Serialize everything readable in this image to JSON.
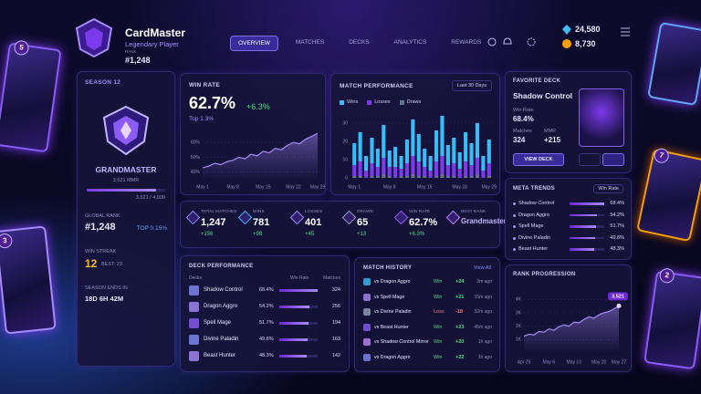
{
  "header": {
    "brand": "CardMaster",
    "subtitle": "Legendary Player",
    "rank_label": "RANK",
    "rank": "#1,248",
    "nav": [
      "OVERVIEW",
      "MATCHES",
      "DECKS",
      "ANALYTICS",
      "REWARDS"
    ],
    "gems": "24,580",
    "coins": "8,730"
  },
  "side_cards": [
    "5",
    "3",
    "7",
    "2"
  ],
  "profile": {
    "season": "SEASON 12",
    "tier": "GRANDMASTER",
    "mmr": "3,521 MMR",
    "progress": "3,521 / 4,000",
    "global_rank_label": "GLOBAL RANK",
    "global_rank": "#1,248",
    "top": "TOP 0.15%",
    "win_streak_label": "WIN STREAK",
    "win_streak": "12",
    "best": "BEST: 23",
    "season_ends_label": "SEASON ENDS IN",
    "season_ends": "18D 6H 42M"
  },
  "win_rate": {
    "title": "WIN RATE",
    "value": "62.7%",
    "change": "+6.3%",
    "sub": "Top 1.3%",
    "chart": {
      "type": "line",
      "color": "#a78bfa",
      "categories": [
        "May 1",
        null,
        null,
        null,
        null,
        "May 8",
        null,
        null,
        null,
        null,
        "May 15",
        null,
        null,
        null,
        null,
        "May 22",
        null,
        null,
        null,
        "May 29"
      ],
      "values": [
        43,
        44,
        46,
        45,
        47,
        48,
        50,
        49,
        52,
        51,
        54,
        53,
        56,
        55,
        58,
        60,
        59,
        62,
        64,
        66
      ],
      "ylim": [
        35,
        68
      ],
      "yticks": [
        {
          "value": 40,
          "label": "40%"
        },
        {
          "value": 50,
          "label": "50%"
        },
        {
          "value": 60,
          "label": "60%"
        }
      ]
    }
  },
  "match_performance": {
    "title": "MATCH PERFORMANCE",
    "range": "Last 30 Days",
    "chart": {
      "type": "bar",
      "stacked": true,
      "categories": [
        "May 1",
        null,
        null,
        null,
        null,
        null,
        "May 8",
        null,
        null,
        null,
        null,
        null,
        "May 15",
        null,
        null,
        null,
        null,
        null,
        "May 23",
        null,
        null,
        null,
        null,
        "May 29"
      ],
      "series": [
        {
          "name": "Wins",
          "color": "#38bdf8",
          "values": [
            12,
            16,
            8,
            14,
            10,
            18,
            9,
            11,
            7,
            13,
            20,
            15,
            10,
            8,
            17,
            22,
            11,
            14,
            9,
            16,
            12,
            19,
            8,
            13
          ]
        },
        {
          "name": "Losses",
          "color": "#7c3aed",
          "values": [
            6,
            8,
            4,
            7,
            5,
            9,
            5,
            6,
            4,
            7,
            10,
            8,
            5,
            4,
            8,
            10,
            6,
            7,
            5,
            8,
            6,
            9,
            4,
            7
          ]
        },
        {
          "name": "Draws",
          "color": "#64748b",
          "values": [
            1,
            1,
            0,
            1,
            1,
            2,
            1,
            0,
            1,
            1,
            2,
            1,
            1,
            0,
            1,
            2,
            1,
            1,
            0,
            1,
            1,
            2,
            0,
            1
          ]
        }
      ],
      "ylim": [
        0,
        35
      ],
      "yticks": [
        0,
        10,
        20,
        30
      ]
    }
  },
  "favorite_deck": {
    "title": "FAVORITE DECK",
    "name": "Shadow Control",
    "win_rate_label": "Win Rate",
    "win_rate": "68.4%",
    "matches_label": "Matches",
    "matches": "324",
    "mmr_label": "MMR",
    "mmr": "+215",
    "button": "VIEW DECK"
  },
  "stats": [
    {
      "label": "TOTAL MATCHES",
      "value": "1,247",
      "change": "+156"
    },
    {
      "label": "WINS",
      "value": "781",
      "change": "+98"
    },
    {
      "label": "LOSSES",
      "value": "401",
      "change": "+45"
    },
    {
      "label": "DRAWS",
      "value": "65",
      "change": "+13"
    },
    {
      "label": "WIN RATE",
      "value": "62.7%",
      "change": "+6.3%"
    },
    {
      "label": "BEST RANK",
      "value": "Grandmaster"
    }
  ],
  "meta_trends": {
    "title": "META TRENDS",
    "filter": "Win Rate",
    "rows": [
      {
        "name": "Shadow Control",
        "win_rate": 68.4,
        "win_rate_label": "68.4%"
      },
      {
        "name": "Dragon Aggro",
        "win_rate": 54.2,
        "win_rate_label": "54.2%"
      },
      {
        "name": "Spell Mage",
        "win_rate": 51.7,
        "win_rate_label": "51.7%"
      },
      {
        "name": "Divine Paladin",
        "win_rate": 49.8,
        "win_rate_label": "49.8%"
      },
      {
        "name": "Beast Hunter",
        "win_rate": 48.3,
        "win_rate_label": "48.3%"
      }
    ]
  },
  "deck_performance": {
    "title": "DECK PERFORMANCE",
    "headers": [
      "Decks",
      "Win Rate",
      "Matches"
    ],
    "rows": [
      {
        "name": "Shadow Control",
        "win_rate": 68.4,
        "win_rate_label": "68.4%",
        "matches": "324"
      },
      {
        "name": "Dragon Aggro",
        "win_rate": 54.2,
        "win_rate_label": "54.2%",
        "matches": "256"
      },
      {
        "name": "Spell Mage",
        "win_rate": 51.7,
        "win_rate_label": "51.7%",
        "matches": "194"
      },
      {
        "name": "Divine Paladin",
        "win_rate": 49.8,
        "win_rate_label": "49.8%",
        "matches": "163"
      },
      {
        "name": "Beast Hunter",
        "win_rate": 48.3,
        "win_rate_label": "48.3%",
        "matches": "142"
      }
    ]
  },
  "match_history": {
    "title": "MATCH HISTORY",
    "view_all": "View All",
    "rows": [
      {
        "opponent": "vs Dragon Aggro",
        "result": "Win",
        "mmr": {
          "value": 24,
          "label": "+24"
        },
        "time": "2m ago"
      },
      {
        "opponent": "vs Spell Mage",
        "result": "Win",
        "mmr": {
          "value": 21,
          "label": "+21"
        },
        "time": "15m ago"
      },
      {
        "opponent": "vs Divine Paladin",
        "result": "Loss",
        "mmr": {
          "value": -18,
          "label": "-18"
        },
        "time": "32m ago"
      },
      {
        "opponent": "vs Beast Hunter",
        "result": "Win",
        "mmr": {
          "value": 23,
          "label": "+23"
        },
        "time": "45m ago"
      },
      {
        "opponent": "vs Shadow Control Mirror",
        "result": "Win",
        "mmr": {
          "value": 20,
          "label": "+20"
        },
        "time": "1h ago"
      },
      {
        "opponent": "vs Dragon Aggro",
        "result": "Win",
        "mmr": {
          "value": 22,
          "label": "+22"
        },
        "time": "1h ago"
      }
    ]
  },
  "rank_progression": {
    "title": "RANK PROGRESSION",
    "end_label": "3,521",
    "chart": {
      "type": "line",
      "color": "#a78bfa",
      "categories": [
        "Apr 29",
        null,
        null,
        null,
        null,
        "May 6",
        null,
        null,
        null,
        null,
        "May 13",
        null,
        null,
        null,
        null,
        "May 20",
        null,
        null,
        null,
        "May 27"
      ],
      "values": [
        1250,
        1400,
        1350,
        1600,
        1550,
        1800,
        1700,
        1950,
        2100,
        2000,
        2300,
        2250,
        2500,
        2700,
        2600,
        2850,
        3000,
        3100,
        3300,
        3521
      ],
      "ylim": [
        0,
        4500
      ],
      "yticks": [
        {
          "value": 1000,
          "label": "1K"
        },
        {
          "value": 2000,
          "label": "2K"
        },
        {
          "value": 3000,
          "label": "3K"
        },
        {
          "value": 4000,
          "label": "4K"
        }
      ]
    }
  }
}
